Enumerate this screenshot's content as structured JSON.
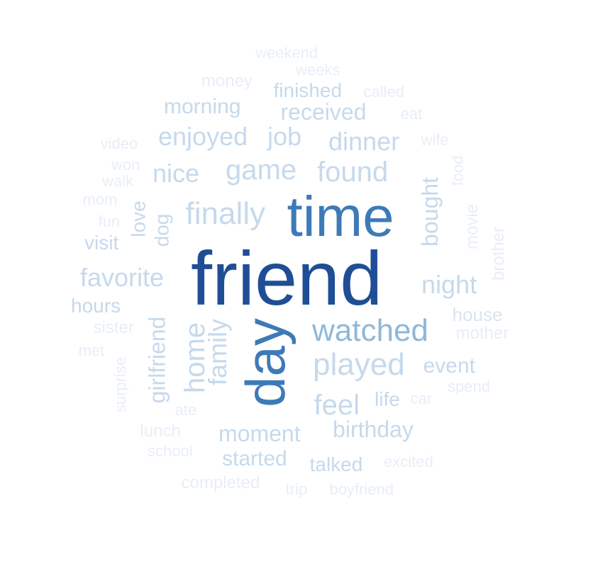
{
  "palette": {
    "darkest": "#1f4e96",
    "dark": "#3d7ab8",
    "medium": "#8fb8d8",
    "light": "#c6d9ec",
    "lighter": "#d9e5f2",
    "lightest": "#e8eef7"
  },
  "words": [
    {
      "text": "friend",
      "weight": 1.0,
      "tone": "darkest"
    },
    {
      "text": "time",
      "weight": 0.6,
      "tone": "dark"
    },
    {
      "text": "day",
      "weight": 0.55,
      "tone": "dark"
    },
    {
      "text": "watched",
      "weight": 0.32,
      "tone": "medium"
    },
    {
      "text": "finally",
      "weight": 0.3,
      "tone": "light"
    },
    {
      "text": "played",
      "weight": 0.3,
      "tone": "light"
    },
    {
      "text": "game",
      "weight": 0.26,
      "tone": "light"
    },
    {
      "text": "found",
      "weight": 0.26,
      "tone": "light"
    },
    {
      "text": "home",
      "weight": 0.26,
      "tone": "light"
    },
    {
      "text": "feel",
      "weight": 0.26,
      "tone": "light"
    },
    {
      "text": "enjoyed",
      "weight": 0.24,
      "tone": "light"
    },
    {
      "text": "job",
      "weight": 0.24,
      "tone": "light"
    },
    {
      "text": "dinner",
      "weight": 0.24,
      "tone": "light"
    },
    {
      "text": "nice",
      "weight": 0.24,
      "tone": "light"
    },
    {
      "text": "favorite",
      "weight": 0.24,
      "tone": "light"
    },
    {
      "text": "night",
      "weight": 0.24,
      "tone": "light"
    },
    {
      "text": "family",
      "weight": 0.24,
      "tone": "light"
    },
    {
      "text": "received",
      "weight": 0.2,
      "tone": "light"
    },
    {
      "text": "bought",
      "weight": 0.2,
      "tone": "light"
    },
    {
      "text": "moment",
      "weight": 0.2,
      "tone": "light"
    },
    {
      "text": "birthday",
      "weight": 0.2,
      "tone": "light"
    },
    {
      "text": "girlfriend",
      "weight": 0.2,
      "tone": "light"
    },
    {
      "text": "morning",
      "weight": 0.18,
      "tone": "light"
    },
    {
      "text": "finished",
      "weight": 0.18,
      "tone": "light"
    },
    {
      "text": "event",
      "weight": 0.18,
      "tone": "light"
    },
    {
      "text": "started",
      "weight": 0.18,
      "tone": "light"
    },
    {
      "text": "dog",
      "weight": 0.18,
      "tone": "light"
    },
    {
      "text": "love",
      "weight": 0.17,
      "tone": "light"
    },
    {
      "text": "visit",
      "weight": 0.16,
      "tone": "light"
    },
    {
      "text": "hours",
      "weight": 0.16,
      "tone": "light"
    },
    {
      "text": "life",
      "weight": 0.16,
      "tone": "light"
    },
    {
      "text": "talked",
      "weight": 0.16,
      "tone": "light"
    },
    {
      "text": "house",
      "weight": 0.15,
      "tone": "lighter"
    },
    {
      "text": "movie",
      "weight": 0.14,
      "tone": "lightest"
    },
    {
      "text": "brother",
      "weight": 0.14,
      "tone": "lightest"
    },
    {
      "text": "food",
      "weight": 0.14,
      "tone": "lightest"
    },
    {
      "text": "sister",
      "weight": 0.13,
      "tone": "lightest"
    },
    {
      "text": "mother",
      "weight": 0.13,
      "tone": "lightest"
    },
    {
      "text": "weekend",
      "weight": 0.12,
      "tone": "lightest"
    },
    {
      "text": "weeks",
      "weight": 0.12,
      "tone": "lightest"
    },
    {
      "text": "money",
      "weight": 0.12,
      "tone": "lightest"
    },
    {
      "text": "called",
      "weight": 0.12,
      "tone": "lightest"
    },
    {
      "text": "eat",
      "weight": 0.12,
      "tone": "lightest"
    },
    {
      "text": "video",
      "weight": 0.12,
      "tone": "lightest"
    },
    {
      "text": "wife",
      "weight": 0.12,
      "tone": "lightest"
    },
    {
      "text": "won",
      "weight": 0.12,
      "tone": "lightest"
    },
    {
      "text": "walk",
      "weight": 0.12,
      "tone": "lightest"
    },
    {
      "text": "mom",
      "weight": 0.12,
      "tone": "lightest"
    },
    {
      "text": "fun",
      "weight": 0.12,
      "tone": "lightest"
    },
    {
      "text": "met",
      "weight": 0.12,
      "tone": "lightest"
    },
    {
      "text": "surprise",
      "weight": 0.12,
      "tone": "lightest"
    },
    {
      "text": "ate",
      "weight": 0.12,
      "tone": "lightest"
    },
    {
      "text": "car",
      "weight": 0.12,
      "tone": "lightest"
    },
    {
      "text": "spend",
      "weight": 0.12,
      "tone": "lightest"
    },
    {
      "text": "lunch",
      "weight": 0.12,
      "tone": "lightest"
    },
    {
      "text": "school",
      "weight": 0.12,
      "tone": "lightest"
    },
    {
      "text": "excited",
      "weight": 0.12,
      "tone": "lightest"
    },
    {
      "text": "completed",
      "weight": 0.12,
      "tone": "lightest"
    },
    {
      "text": "trip",
      "weight": 0.12,
      "tone": "lightest"
    },
    {
      "text": "boyfriend",
      "weight": 0.12,
      "tone": "lightest"
    }
  ]
}
